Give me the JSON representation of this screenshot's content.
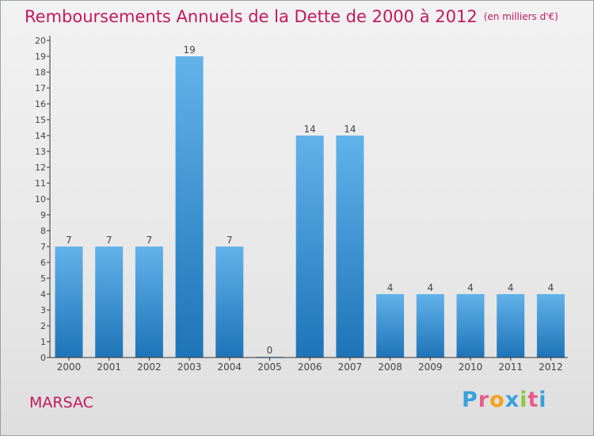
{
  "chart": {
    "title": "Remboursements Annuels de la Dette de 2000 à 2012",
    "unit_note": "(en milliers d'€)",
    "location": "MARSAC",
    "logo": {
      "text": "Proxiti",
      "letter_colors": [
        "#3aa0dc",
        "#e85d8a",
        "#f4a21c",
        "#3aa0dc",
        "#8cc63f",
        "#e85d8a",
        "#3aa0dc"
      ]
    },
    "colors": {
      "bar_top": "#62b2ea",
      "bar_bottom": "#1e74b8",
      "axis": "#333333",
      "label": "#444444"
    }
  },
  "chart_data": {
    "type": "bar",
    "categories": [
      "2000",
      "2001",
      "2002",
      "2003",
      "2004",
      "2005",
      "2006",
      "2007",
      "2008",
      "2009",
      "2010",
      "2011",
      "2012"
    ],
    "values": [
      7,
      7,
      7,
      19,
      7,
      0,
      14,
      14,
      4,
      4,
      4,
      4,
      4
    ],
    "ylim": [
      0,
      20
    ],
    "yticks": [
      0,
      1,
      2,
      3,
      4,
      5,
      6,
      7,
      8,
      9,
      10,
      11,
      12,
      13,
      14,
      15,
      16,
      17,
      18,
      19,
      20
    ],
    "data_labels": true,
    "grid": false,
    "legend": "none"
  }
}
